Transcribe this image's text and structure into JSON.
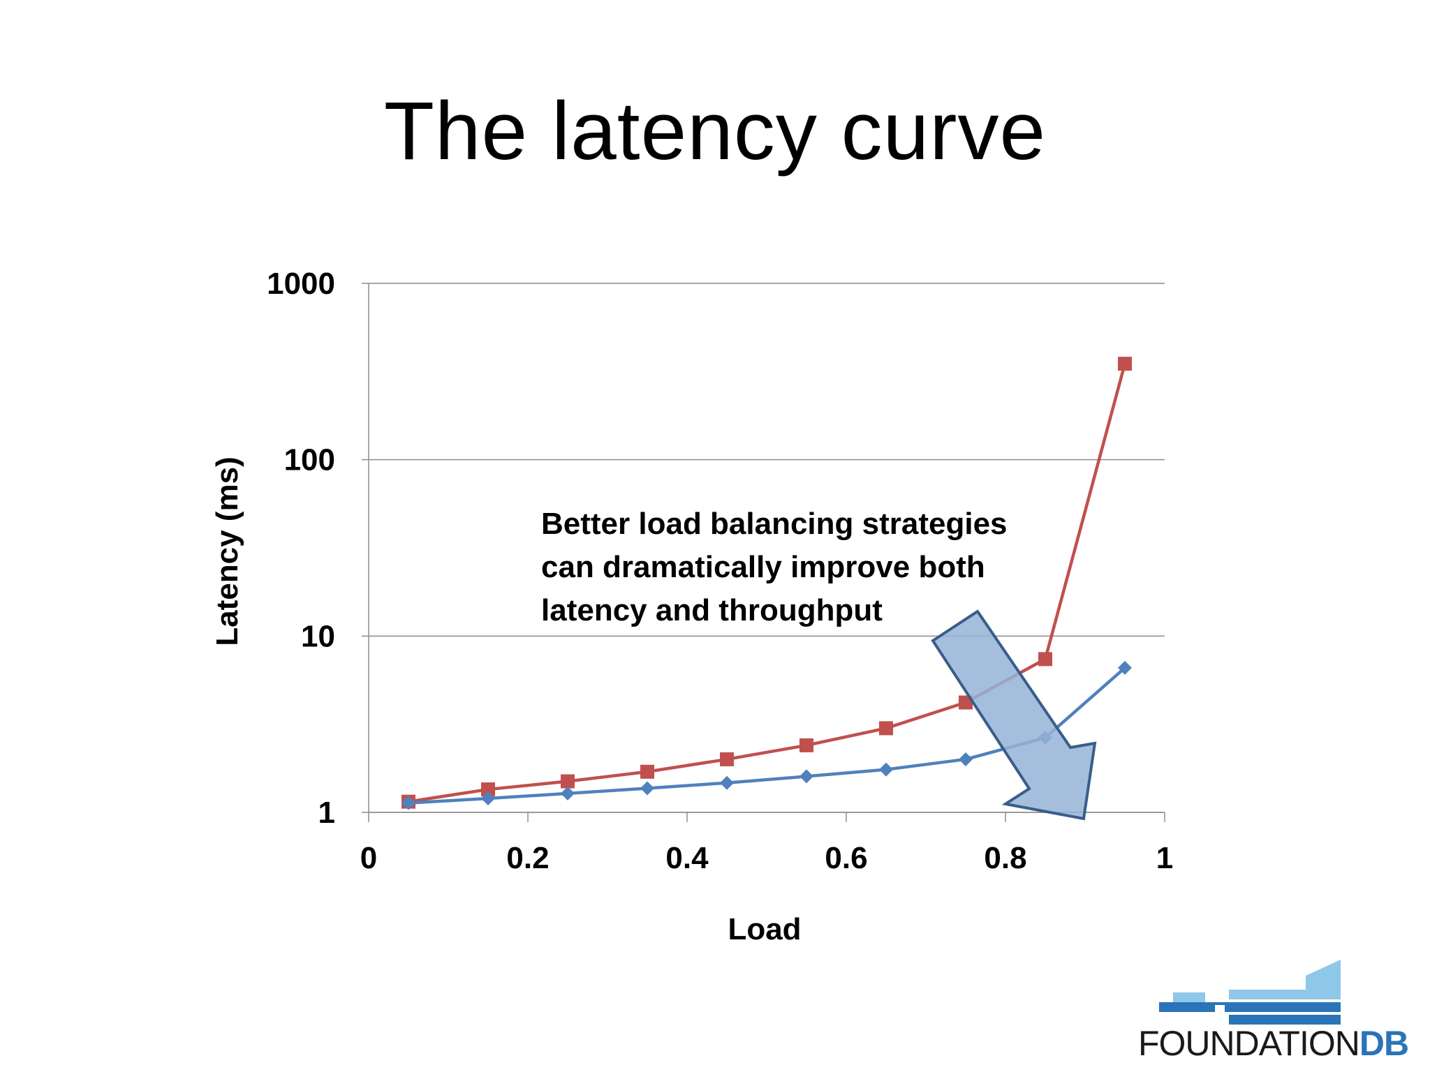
{
  "slide": {
    "title": "The latency curve"
  },
  "chart_data": {
    "type": "line",
    "title": "",
    "xlabel": "Load",
    "ylabel": "Latency (ms)",
    "xlim": [
      0,
      1
    ],
    "ylim": [
      1,
      1000
    ],
    "yscale": "log",
    "x_ticks": [
      0,
      0.2,
      0.4,
      0.6,
      0.8,
      1
    ],
    "x_tick_labels": [
      "0",
      "0.2",
      "0.4",
      "0.6",
      "0.8",
      "1"
    ],
    "y_ticks": [
      1,
      10,
      100,
      1000
    ],
    "y_tick_labels": [
      "1",
      "10",
      "100",
      "1000"
    ],
    "grid": "horizontal",
    "legend": "none",
    "x": [
      0.05,
      0.15,
      0.25,
      0.35,
      0.45,
      0.55,
      0.65,
      0.75,
      0.85,
      0.95
    ],
    "series": [
      {
        "color": "#c0504d",
        "marker": "square",
        "values": [
          1.15,
          1.35,
          1.5,
          1.7,
          2.0,
          2.4,
          3.0,
          4.2,
          7.4,
          350
        ]
      },
      {
        "color": "#4f81bd",
        "marker": "diamond",
        "values": [
          1.13,
          1.2,
          1.28,
          1.37,
          1.47,
          1.6,
          1.75,
          2.0,
          2.65,
          6.6
        ]
      }
    ],
    "annotation": {
      "lines": [
        "Better load balancing strategies",
        "can dramatically improve both",
        "latency and throughput"
      ],
      "arrow_color": "#95b3d7",
      "arrow_outline": "#385d8a"
    }
  },
  "logo": {
    "word_part1": "FOUNDATION",
    "word_part2": "DB",
    "color_light": "#8fc7e8",
    "color_dark": "#2a74b8"
  }
}
